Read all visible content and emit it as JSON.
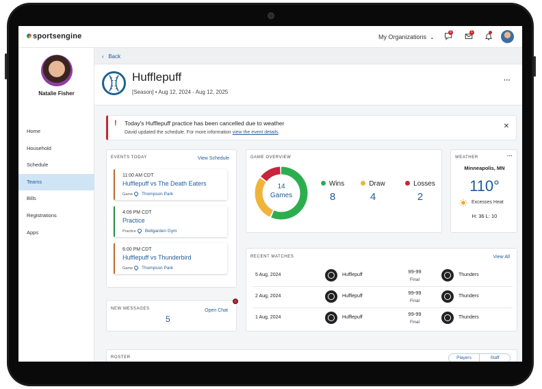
{
  "topbar": {
    "logo": "sportsengine",
    "orgs_label": "My Organizations",
    "chat_badge": "5",
    "mail_badge": "1"
  },
  "sidebar": {
    "user_name": "Natalie Fisher",
    "items": [
      {
        "label": "Home"
      },
      {
        "label": "Household"
      },
      {
        "label": "Schedule"
      },
      {
        "label": "Teams"
      },
      {
        "label": "Bills"
      },
      {
        "label": "Registrations"
      },
      {
        "label": "Apps"
      }
    ]
  },
  "main": {
    "back_label": "Back",
    "team_name": "Hufflepuff",
    "season": "[Season] •  Aug 12, 2024 - Aug 12, 2025",
    "alert": {
      "title": "Today's Hufflepuff practice has been cancelled due to weather",
      "subtitle": "David updated the schedule. For more information ",
      "link": "view the event details",
      "tail": "."
    },
    "events": {
      "label": "EVENTS TODAY",
      "link": "View Schedule",
      "items": [
        {
          "time": "11:00 AM CDT",
          "title": "Hufflepuff vs The Death Eaters",
          "type": "Game",
          "location": "Thompson Park",
          "color": "#c26a2b"
        },
        {
          "time": "4:09 PM CDT",
          "title": "Practice",
          "type": "Practice",
          "location": "Bellgarden Gym",
          "color": "#2c8a45"
        },
        {
          "time": "6:00 PM CDT",
          "title": "Hufflepuff vs Thunderbird",
          "type": "Game",
          "location": "Thompson Park",
          "color": "#c26a2b"
        }
      ]
    },
    "messages": {
      "label": "NEW MESSAGES",
      "count": "5",
      "link": "Open Chat"
    },
    "overview": {
      "label": "GAME OVERVIEW",
      "games_count": "14",
      "games_label": "Games",
      "wins_label": "Wins",
      "wins": "8",
      "draws_label": "Draw",
      "draws": "4",
      "losses_label": "Losses",
      "losses": "2",
      "colors": {
        "wins": "#2cae4f",
        "draws": "#f0b43a",
        "losses": "#c8243a"
      }
    },
    "weather": {
      "label": "WEATHER",
      "city": "Minneapolis, MN",
      "temp": "110°",
      "condition": "Excesses Heat",
      "hi_lo": "H: 36  L: 10"
    },
    "matches": {
      "label": "RECENT MATCHES",
      "link": "View All",
      "rows": [
        {
          "date": "5 Aug, 2024",
          "home": "Hufflepuff",
          "score": "99-99",
          "status": "Final",
          "away": "Thunders"
        },
        {
          "date": "2 Aug, 2024",
          "home": "Hufflepuff",
          "score": "99-99",
          "status": "Final",
          "away": "Thunders"
        },
        {
          "date": "1 Aug, 2024",
          "home": "Hufflepuff",
          "score": "99-99",
          "status": "Final",
          "away": "Thunders"
        }
      ]
    },
    "roster": {
      "label": "ROSTER",
      "players_label": "Players",
      "staff_label": "Staff"
    }
  }
}
